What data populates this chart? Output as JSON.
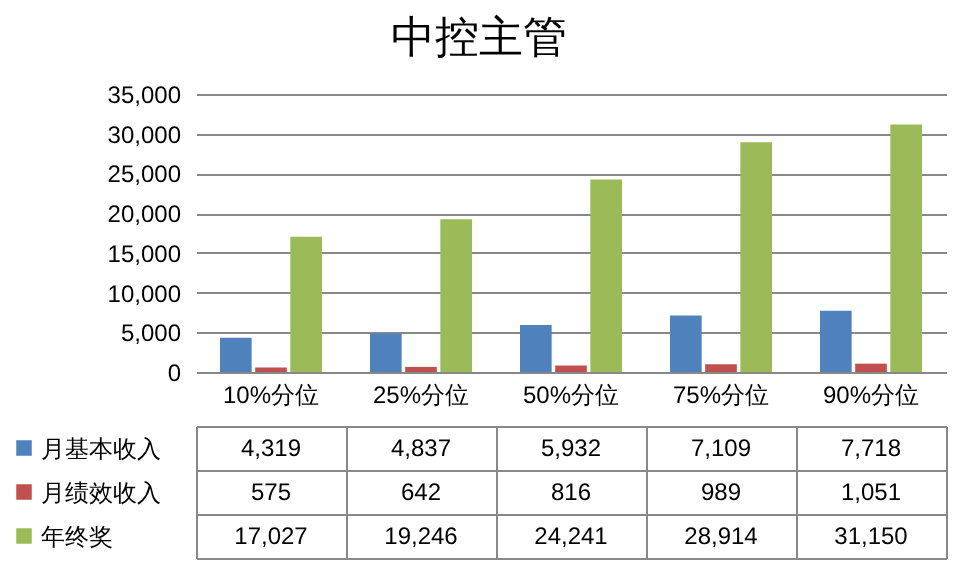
{
  "chart_data": {
    "type": "bar",
    "title": "中控主管",
    "categories": [
      "10%分位",
      "25%分位",
      "50%分位",
      "75%分位",
      "90%分位"
    ],
    "series": [
      {
        "name": "月基本收入",
        "color": "#4f81bd",
        "values": [
          4319,
          4837,
          5932,
          7109,
          7718
        ],
        "value_labels": [
          "4,319",
          "4,837",
          "5,932",
          "7,109",
          "7,718"
        ]
      },
      {
        "name": "月绩效收入",
        "color": "#c0504d",
        "values": [
          575,
          642,
          816,
          989,
          1051
        ],
        "value_labels": [
          "575",
          "642",
          "816",
          "989",
          "1,051"
        ]
      },
      {
        "name": "年终奖",
        "color": "#9bbb59",
        "values": [
          17027,
          19246,
          24241,
          28914,
          31150
        ],
        "value_labels": [
          "17,027",
          "19,246",
          "24,241",
          "28,914",
          "31,150"
        ]
      }
    ],
    "ylim": [
      0,
      35000
    ],
    "yticks": [
      0,
      {
        "value": 5000,
        "label": "5,000"
      },
      {
        "value": 10000,
        "label": "10,000"
      },
      {
        "value": 15000,
        "label": "15,000"
      },
      {
        "value": 20000,
        "label": "20,000"
      },
      {
        "value": 25000,
        "label": "25,000"
      },
      {
        "value": 30000,
        "label": "30,000"
      },
      {
        "value": 35000,
        "label": "35,000"
      }
    ],
    "grid": "y",
    "legend": "bottom"
  }
}
